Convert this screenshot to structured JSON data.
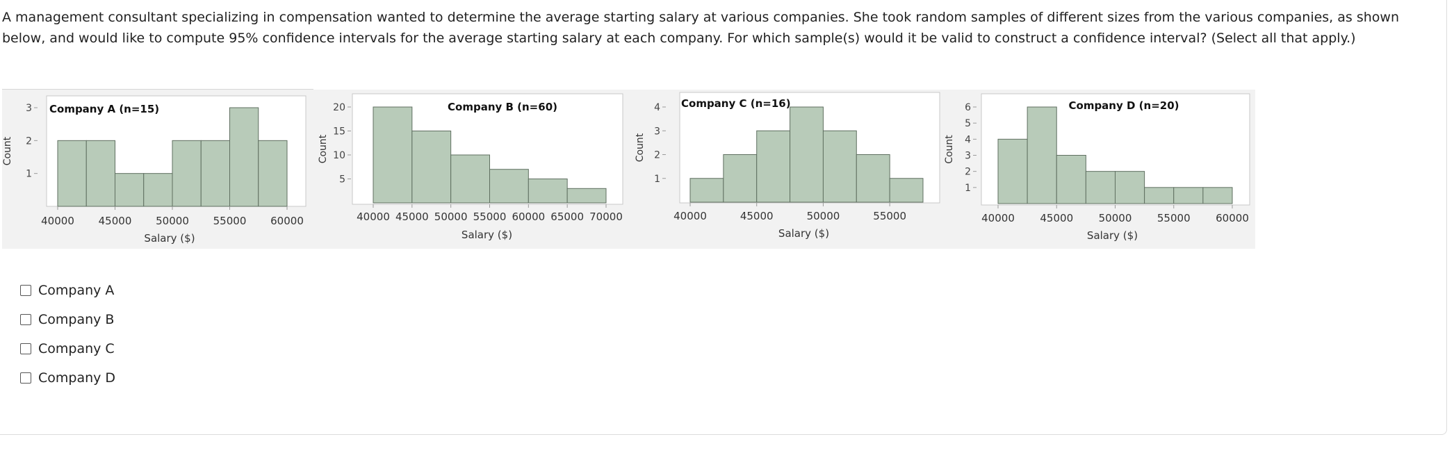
{
  "question": "A management consultant specializing in compensation wanted to determine the average starting salary at various companies. She took random samples of different sizes from the various companies, as shown below, and would like to compute 95% confidence intervals for the average starting salary at each company. For which sample(s) would it be valid to construct a confidence interval? (Select all that apply.)",
  "options": [
    {
      "label": "Company A",
      "checked": false
    },
    {
      "label": "Company B",
      "checked": false
    },
    {
      "label": "Company C",
      "checked": false
    },
    {
      "label": "Company D",
      "checked": false
    }
  ],
  "colors": {
    "bar_fill": "#b8cbb9",
    "bar_stroke": "#5f6f60",
    "panel_bg": "#f2f2f2"
  },
  "chart_data": [
    {
      "type": "bar",
      "title": "Company A (n=15)",
      "xlabel": "Salary ($)",
      "ylabel": "Count",
      "bins": [
        [
          40000,
          42500
        ],
        [
          42500,
          45000
        ],
        [
          45000,
          47500
        ],
        [
          47500,
          50000
        ],
        [
          50000,
          52500
        ],
        [
          52500,
          55000
        ],
        [
          55000,
          57500
        ],
        [
          57500,
          60000
        ]
      ],
      "values": [
        2,
        2,
        1,
        1,
        2,
        2,
        3,
        2
      ],
      "xticks": [
        40000,
        45000,
        50000,
        55000,
        60000
      ],
      "yticks": [
        1,
        2,
        3
      ],
      "xlim": [
        40000,
        60000
      ],
      "ylim": [
        0,
        3
      ]
    },
    {
      "type": "bar",
      "title": "Company B (n=60)",
      "xlabel": "Salary ($)",
      "ylabel": "Count",
      "bins": [
        [
          40000,
          45000
        ],
        [
          45000,
          50000
        ],
        [
          50000,
          55000
        ],
        [
          55000,
          60000
        ],
        [
          60000,
          65000
        ],
        [
          65000,
          70000
        ]
      ],
      "values": [
        20,
        15,
        10,
        7,
        5,
        3
      ],
      "xticks": [
        40000,
        45000,
        50000,
        55000,
        60000,
        65000,
        70000
      ],
      "yticks": [
        5,
        10,
        15,
        20
      ],
      "xlim": [
        40000,
        70000
      ],
      "ylim": [
        0,
        20
      ]
    },
    {
      "type": "bar",
      "title": "Company C (n=16)",
      "xlabel": "Salary ($)",
      "ylabel": "Count",
      "bins": [
        [
          40000,
          42500
        ],
        [
          42500,
          45000
        ],
        [
          45000,
          47500
        ],
        [
          47500,
          50000
        ],
        [
          50000,
          52500
        ],
        [
          52500,
          55000
        ],
        [
          55000,
          57500
        ]
      ],
      "values": [
        1,
        2,
        3,
        4,
        3,
        2,
        1
      ],
      "xticks": [
        40000,
        45000,
        50000,
        55000
      ],
      "yticks": [
        1,
        2,
        3,
        4
      ],
      "xlim": [
        40000,
        57500
      ],
      "ylim": [
        0,
        4
      ]
    },
    {
      "type": "bar",
      "title": "Company D (n=20)",
      "xlabel": "Salary ($)",
      "ylabel": "Count",
      "bins": [
        [
          40000,
          42500
        ],
        [
          42500,
          45000
        ],
        [
          45000,
          47500
        ],
        [
          47500,
          50000
        ],
        [
          50000,
          52500
        ],
        [
          52500,
          55000
        ],
        [
          55000,
          57500
        ],
        [
          57500,
          60000
        ]
      ],
      "values": [
        4,
        6,
        3,
        2,
        2,
        1,
        1,
        1
      ],
      "xticks": [
        40000,
        45000,
        50000,
        55000,
        60000
      ],
      "yticks": [
        1,
        2,
        3,
        4,
        5,
        6
      ],
      "xlim": [
        40000,
        60000
      ],
      "ylim": [
        0,
        6
      ]
    }
  ]
}
